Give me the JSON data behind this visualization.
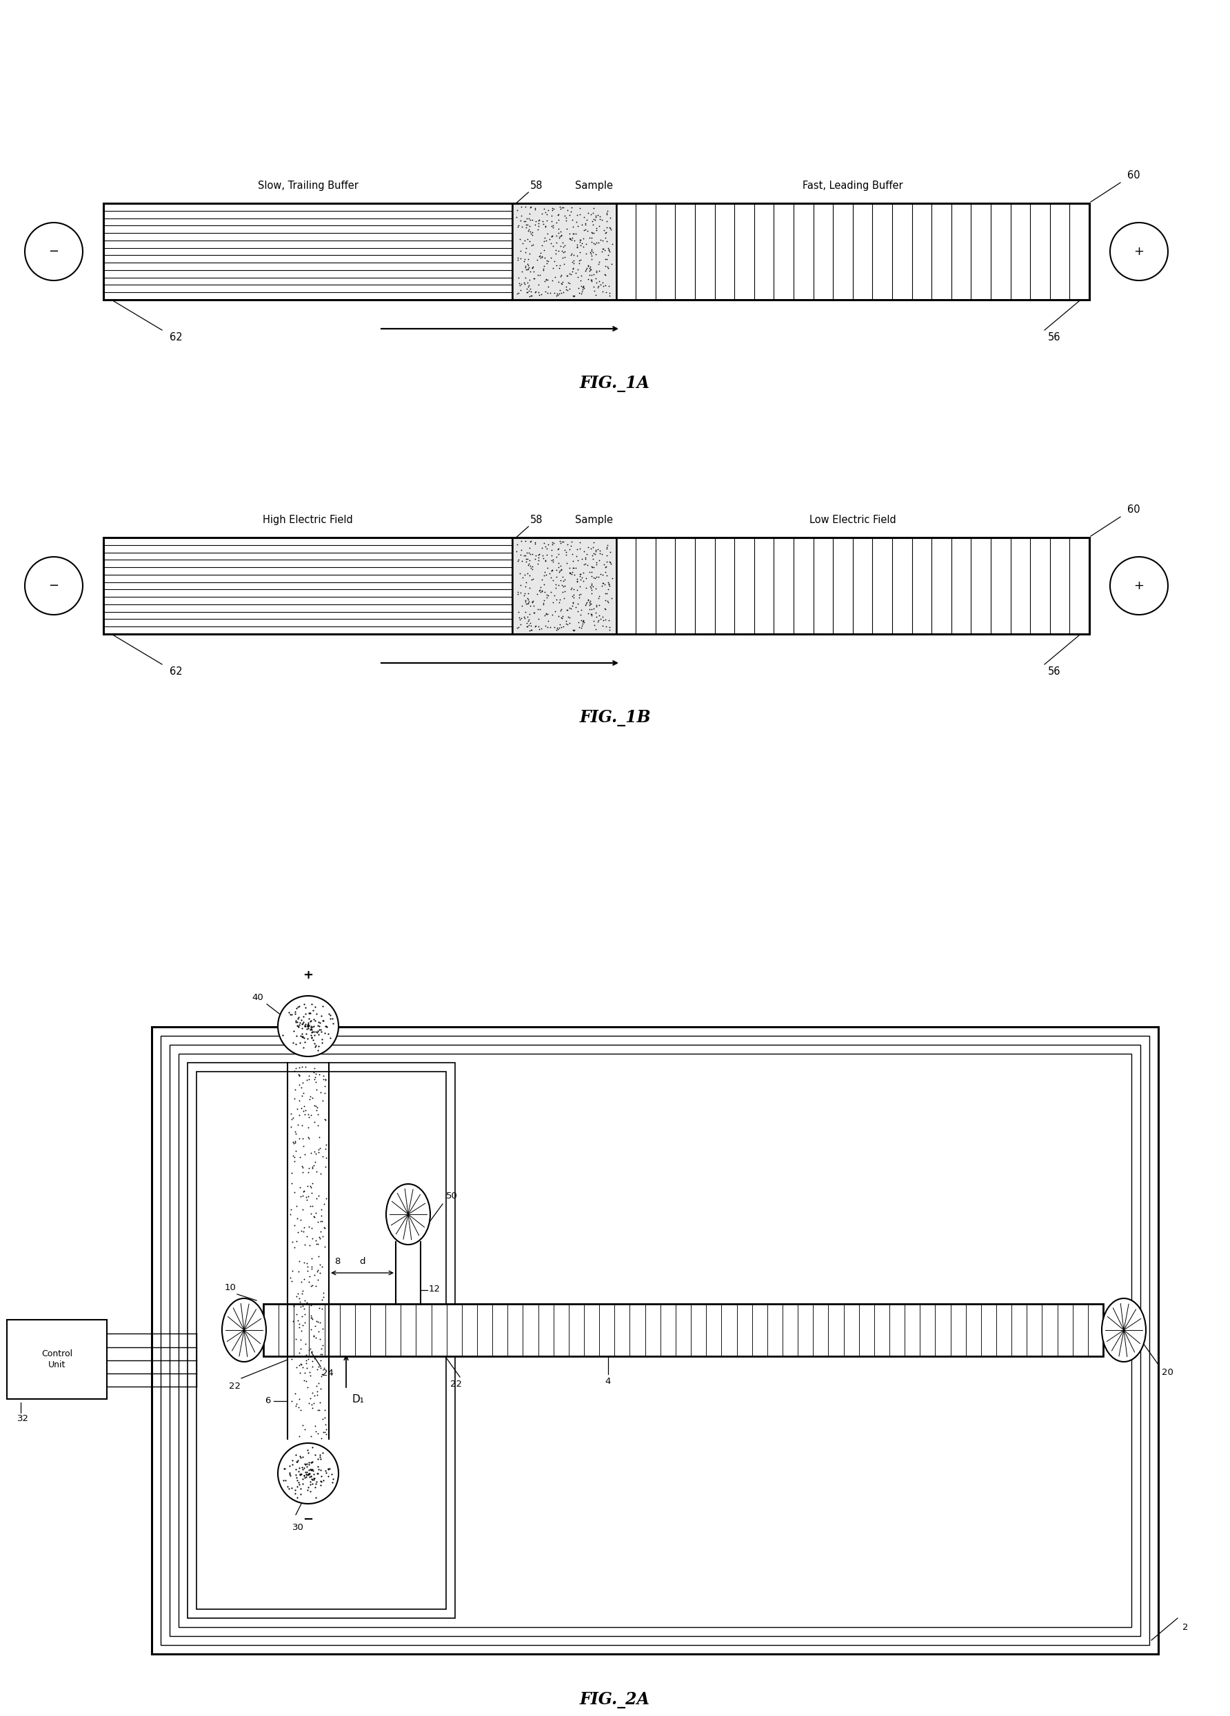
{
  "fig_width": 17.84,
  "fig_height": 24.9,
  "bg_color": "#ffffff",
  "fig1a_title": "FIG._1A",
  "fig1b_title": "FIG._1B",
  "fig2a_title": "FIG._2A",
  "slow_trailing": "Slow, Trailing Buffer",
  "fast_leading": "Fast, Leading Buffer",
  "high_field": "High Electric Field",
  "low_field": "Low Electric Field",
  "sample": "Sample",
  "control_unit": "Control\nUnit",
  "n58": "58",
  "n60": "60",
  "n62": "62",
  "n56": "56",
  "n2": "2",
  "n4": "4",
  "n6": "6",
  "n8": "8",
  "n10": "10",
  "n12": "12",
  "n20": "20",
  "n22": "22",
  "n24": "24",
  "n30": "30",
  "n32": "32",
  "n40": "40",
  "n50": "50",
  "plus": "+",
  "minus": "−",
  "d_label": "d",
  "D1_label": "D₁"
}
